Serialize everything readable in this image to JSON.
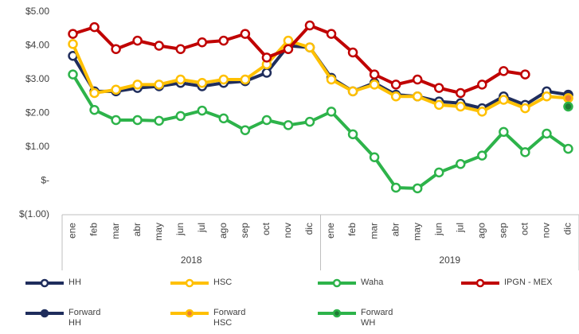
{
  "chart_data": {
    "type": "line",
    "categories": [
      "ene",
      "feb",
      "mar",
      "abr",
      "may",
      "jun",
      "jul",
      "ago",
      "sep",
      "oct",
      "nov",
      "dic",
      "ene",
      "feb",
      "mar",
      "abr",
      "may",
      "jun",
      "jul",
      "ago",
      "sep",
      "oct",
      "nov",
      "dic"
    ],
    "category_groups": [
      "2018",
      "2019"
    ],
    "ylim": [
      -1,
      5
    ],
    "yticks": [
      {
        "value": -1,
        "label": "$(1.00)"
      },
      {
        "value": 0,
        "label": "$-"
      },
      {
        "value": 1,
        "label": "$1.00"
      },
      {
        "value": 2,
        "label": "$2.00"
      },
      {
        "value": 3,
        "label": "$3.00"
      },
      {
        "value": 4,
        "label": "$4.00"
      },
      {
        "value": 5,
        "label": "$5.00"
      }
    ],
    "grid": false,
    "legend": "bottom",
    "series": [
      {
        "name": "HH",
        "color": "#1f2d5c",
        "marker_fill": "#ffffff",
        "values": [
          3.7,
          2.65,
          2.65,
          2.75,
          2.8,
          2.9,
          2.8,
          2.9,
          2.95,
          3.2,
          4.0,
          3.95,
          3.05,
          2.65,
          2.9,
          2.55,
          2.5,
          2.35,
          2.3,
          2.15,
          2.5,
          2.25,
          2.65,
          2.55
        ]
      },
      {
        "name": "HSC",
        "color": "#ffc000",
        "marker_fill": "#ffffff",
        "values": [
          4.05,
          2.6,
          2.7,
          2.85,
          2.85,
          3.0,
          2.9,
          3.0,
          3.0,
          3.45,
          4.15,
          3.95,
          3.0,
          2.65,
          2.85,
          2.5,
          2.5,
          2.25,
          2.2,
          2.05,
          2.4,
          2.15,
          2.5,
          2.45
        ]
      },
      {
        "name": "Waha",
        "color": "#2db34a",
        "marker_fill": "#ffffff",
        "values": [
          3.15,
          2.1,
          1.8,
          1.8,
          1.78,
          1.92,
          2.08,
          1.85,
          1.5,
          1.8,
          1.65,
          1.75,
          2.05,
          1.38,
          0.7,
          -0.2,
          -0.22,
          0.25,
          0.5,
          0.75,
          1.45,
          0.85,
          1.4,
          0.95
        ]
      },
      {
        "name": "IPGN - MEX",
        "color": "#c00000",
        "marker_fill": "#ffffff",
        "values": [
          4.35,
          4.55,
          3.9,
          4.15,
          4.0,
          3.9,
          4.1,
          4.15,
          4.35,
          3.65,
          3.9,
          4.6,
          4.35,
          3.8,
          3.15,
          2.85,
          3.0,
          2.75,
          2.6,
          2.85,
          3.25,
          3.15,
          null,
          null
        ]
      },
      {
        "name": "Forward HH",
        "color": "#1f2d5c",
        "marker_fill": "#1f2d5c",
        "values": [
          null,
          null,
          null,
          null,
          null,
          null,
          null,
          null,
          null,
          null,
          null,
          null,
          null,
          null,
          null,
          null,
          null,
          null,
          null,
          null,
          null,
          null,
          null,
          2.55
        ]
      },
      {
        "name": "Forward HSC",
        "color": "#ffc000",
        "marker_fill": "#ed7d31",
        "values": [
          null,
          null,
          null,
          null,
          null,
          null,
          null,
          null,
          null,
          null,
          null,
          null,
          null,
          null,
          null,
          null,
          null,
          null,
          null,
          null,
          null,
          null,
          null,
          2.45
        ]
      },
      {
        "name": "Forward WH",
        "color": "#2db34a",
        "marker_fill": "#1e7b34",
        "values": [
          null,
          null,
          null,
          null,
          null,
          null,
          null,
          null,
          null,
          null,
          null,
          null,
          null,
          null,
          null,
          null,
          null,
          null,
          null,
          null,
          null,
          null,
          null,
          2.2
        ]
      }
    ]
  }
}
